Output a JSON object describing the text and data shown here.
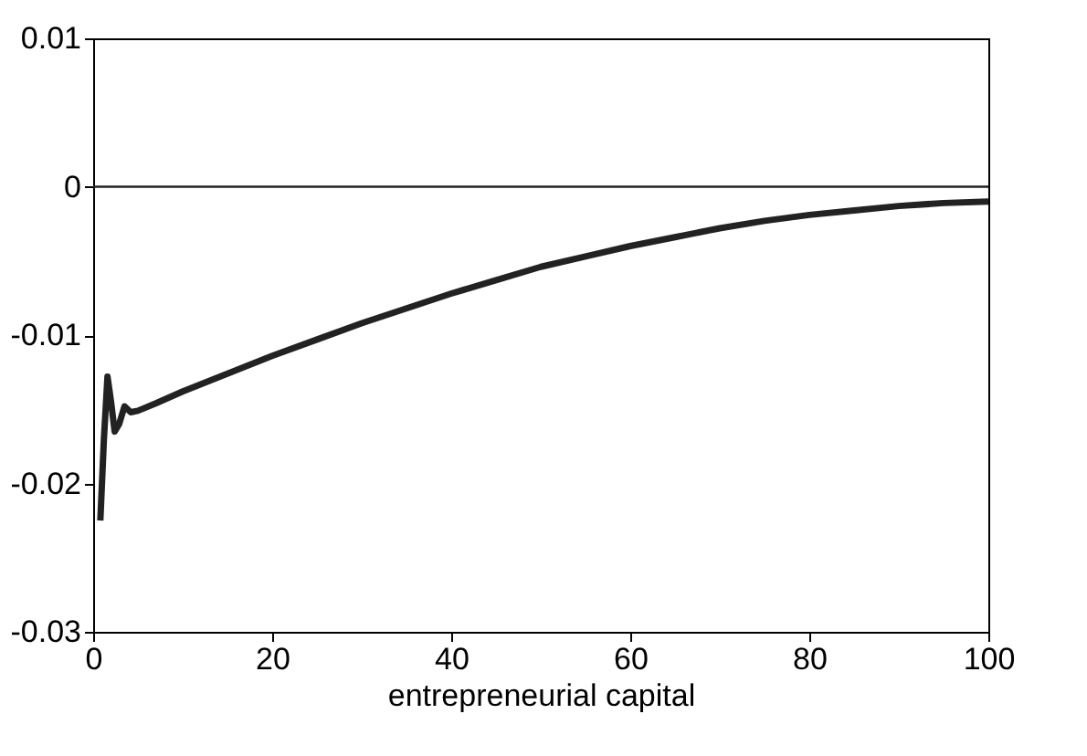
{
  "chart_data": {
    "type": "line",
    "xlabel": "entrepreneurial capital",
    "x": [
      0.8,
      1.2,
      1.6,
      2.0,
      2.4,
      2.9,
      3.5,
      4.2,
      5,
      7,
      10,
      15,
      20,
      25,
      30,
      35,
      40,
      45,
      50,
      55,
      60,
      65,
      70,
      75,
      80,
      85,
      90,
      95,
      100
    ],
    "series": [
      {
        "color": "#222222",
        "values": [
          -0.0225,
          -0.017,
          -0.0128,
          -0.0145,
          -0.0165,
          -0.016,
          -0.0148,
          -0.0152,
          -0.0151,
          -0.0146,
          -0.0138,
          -0.0126,
          -0.0114,
          -0.0103,
          -0.0092,
          -0.0082,
          -0.0072,
          -0.0063,
          -0.0054,
          -0.0047,
          -0.004,
          -0.0034,
          -0.0028,
          -0.0023,
          -0.0019,
          -0.0016,
          -0.0013,
          -0.0011,
          -0.001
        ]
      }
    ],
    "xlim": [
      0,
      100
    ],
    "xticks": [
      0,
      20,
      40,
      60,
      80,
      100
    ],
    "ylim": [
      -0.03,
      0.01
    ],
    "yticks": [
      -0.03,
      -0.02,
      -0.01,
      0,
      0.01
    ],
    "ref_lines": [
      {
        "axis": "y",
        "value": 0,
        "color": "#222222"
      }
    ],
    "grid": false,
    "marker": "none",
    "line_style": "solid"
  }
}
